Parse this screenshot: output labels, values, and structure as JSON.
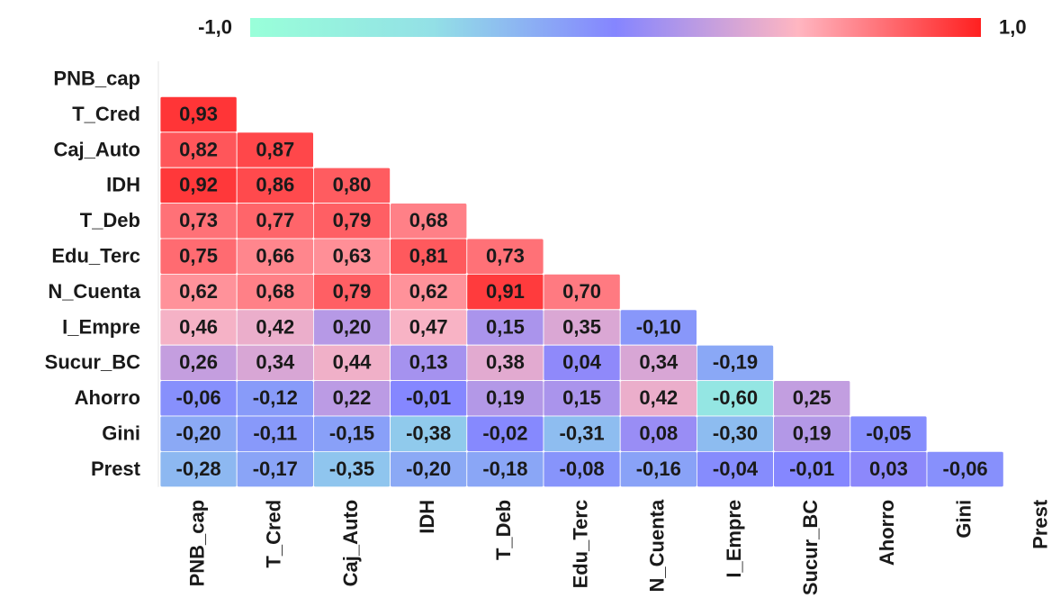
{
  "chart_data": {
    "type": "heatmap",
    "x": [
      "PNB_cap",
      "T_Cred",
      "Caj_Auto",
      "IDH",
      "T_Deb",
      "Edu_Terc",
      "N_Cuenta",
      "I_Empre",
      "Sucur_BC",
      "Ahorro",
      "Gini",
      "Prest"
    ],
    "y": [
      "PNB_cap",
      "T_Cred",
      "Caj_Auto",
      "IDH",
      "T_Deb",
      "Edu_Terc",
      "N_Cuenta",
      "I_Empre",
      "Sucur_BC",
      "Ahorro",
      "Gini",
      "Prest"
    ],
    "values": [
      [
        null,
        null,
        null,
        null,
        null,
        null,
        null,
        null,
        null,
        null,
        null,
        null
      ],
      [
        0.93,
        null,
        null,
        null,
        null,
        null,
        null,
        null,
        null,
        null,
        null,
        null
      ],
      [
        0.82,
        0.87,
        null,
        null,
        null,
        null,
        null,
        null,
        null,
        null,
        null,
        null
      ],
      [
        0.92,
        0.86,
        0.8,
        null,
        null,
        null,
        null,
        null,
        null,
        null,
        null,
        null
      ],
      [
        0.73,
        0.77,
        0.79,
        0.68,
        null,
        null,
        null,
        null,
        null,
        null,
        null,
        null
      ],
      [
        0.75,
        0.66,
        0.63,
        0.81,
        0.73,
        null,
        null,
        null,
        null,
        null,
        null,
        null
      ],
      [
        0.62,
        0.68,
        0.79,
        0.62,
        0.91,
        0.7,
        null,
        null,
        null,
        null,
        null,
        null
      ],
      [
        0.46,
        0.42,
        0.2,
        0.47,
        0.15,
        0.35,
        -0.1,
        null,
        null,
        null,
        null,
        null
      ],
      [
        0.26,
        0.34,
        0.44,
        0.13,
        0.38,
        0.04,
        0.34,
        -0.19,
        null,
        null,
        null,
        null
      ],
      [
        -0.06,
        -0.12,
        0.22,
        -0.01,
        0.19,
        0.15,
        0.42,
        -0.6,
        0.25,
        null,
        null,
        null
      ],
      [
        -0.2,
        -0.11,
        -0.15,
        -0.38,
        -0.02,
        -0.31,
        0.08,
        -0.3,
        0.19,
        -0.05,
        null,
        null
      ],
      [
        -0.28,
        -0.17,
        -0.35,
        -0.2,
        -0.18,
        -0.08,
        -0.16,
        -0.04,
        -0.01,
        0.03,
        -0.06,
        null
      ]
    ],
    "value_labels": [
      [
        null,
        null,
        null,
        null,
        null,
        null,
        null,
        null,
        null,
        null,
        null,
        null
      ],
      [
        "0,93",
        null,
        null,
        null,
        null,
        null,
        null,
        null,
        null,
        null,
        null,
        null
      ],
      [
        "0,82",
        "0,87",
        null,
        null,
        null,
        null,
        null,
        null,
        null,
        null,
        null,
        null
      ],
      [
        "0,92",
        "0,86",
        "0,80",
        null,
        null,
        null,
        null,
        null,
        null,
        null,
        null,
        null
      ],
      [
        "0,73",
        "0,77",
        "0,79",
        "0,68",
        null,
        null,
        null,
        null,
        null,
        null,
        null,
        null
      ],
      [
        "0,75",
        "0,66",
        "0,63",
        "0,81",
        "0,73",
        null,
        null,
        null,
        null,
        null,
        null,
        null
      ],
      [
        "0,62",
        "0,68",
        "0,79",
        "0,62",
        "0,91",
        "0,70",
        null,
        null,
        null,
        null,
        null,
        null
      ],
      [
        "0,46",
        "0,42",
        "0,20",
        "0,47",
        "0,15",
        "0,35",
        "-0,10",
        null,
        null,
        null,
        null,
        null
      ],
      [
        "0,26",
        "0,34",
        "0,44",
        "0,13",
        "0,38",
        "0,04",
        "0,34",
        "-0,19",
        null,
        null,
        null,
        null
      ],
      [
        "-0,06",
        "-0,12",
        "0,22",
        "-0,01",
        "0,19",
        "0,15",
        "0,42",
        "-0,60",
        "0,25",
        null,
        null,
        null
      ],
      [
        "-0,20",
        "-0,11",
        "-0,15",
        "-0,38",
        "-0,02",
        "-0,31",
        "0,08",
        "-0,30",
        "0,19",
        "-0,05",
        null,
        null
      ],
      [
        "-0,28",
        "-0,17",
        "-0,35",
        "-0,20",
        "-0,18",
        "-0,08",
        "-0,16",
        "-0,04",
        "-0,01",
        "0,03",
        "-0,06",
        null
      ]
    ],
    "colorscale": [
      "#99ffd9",
      "#93e0e6",
      "#8585ff",
      "#ffb6c1",
      "#ff2020"
    ],
    "colorbar_ticks": [
      {
        "value": -1,
        "label": "-1,0"
      },
      {
        "value": 1,
        "label": "1,0"
      }
    ]
  }
}
